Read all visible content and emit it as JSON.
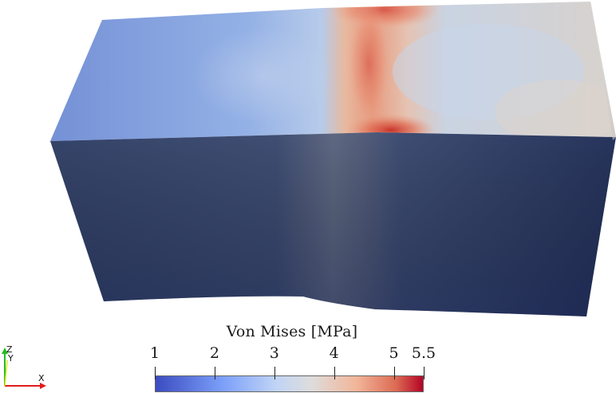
{
  "colorbar": {
    "title": "Von Mises [MPa]",
    "min": 1,
    "max": 5.5,
    "ticks": [
      {
        "label": "1",
        "value": 1
      },
      {
        "label": "2",
        "value": 2
      },
      {
        "label": "3",
        "value": 3
      },
      {
        "label": "4",
        "value": 4
      },
      {
        "label": "5",
        "value": 5
      },
      {
        "label": "5.5",
        "value": 5.5
      }
    ],
    "colormap": "Cool to Warm",
    "colors": {
      "low": "#3b4cc0",
      "mid": "#dddddd",
      "high": "#b40426"
    }
  },
  "axes": {
    "x_label": "X",
    "y_label": "Y",
    "z_label": "Z",
    "x_color": "#e11b1b",
    "y_color": "#e6e61a",
    "z_color": "#1fbf1f"
  },
  "scene": {
    "background": "#ffffff",
    "object": "deformed-block-mesh"
  }
}
